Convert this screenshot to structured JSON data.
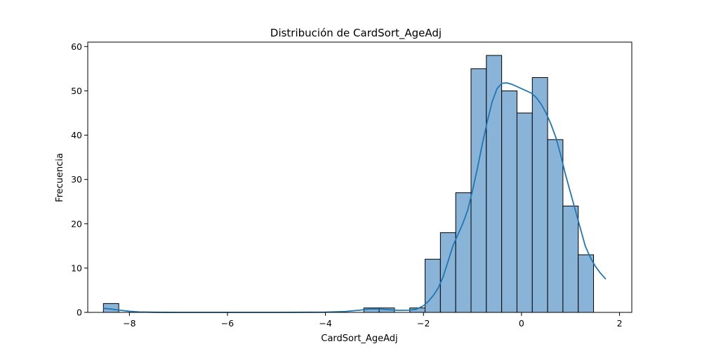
{
  "chart_data": {
    "type": "bar",
    "subtype": "histogram",
    "title": "Distribución de CardSort_AgeAdj",
    "xlabel": "CardSort_AgeAdj",
    "ylabel": "Frecuencia",
    "xlim": [
      -8.85,
      2.25
    ],
    "ylim": [
      0,
      61
    ],
    "x_ticks": [
      -8,
      -6,
      -4,
      -2,
      0,
      2
    ],
    "x_tick_labels": [
      "−8",
      "−6",
      "−4",
      "−2",
      "0",
      "2"
    ],
    "y_ticks": [
      0,
      10,
      20,
      30,
      40,
      50,
      60
    ],
    "y_tick_labels": [
      "0",
      "10",
      "20",
      "30",
      "40",
      "50",
      "60"
    ],
    "grid": false,
    "bins": {
      "start": -8.53,
      "width": 0.3125,
      "counts": [
        2,
        0,
        0,
        0,
        0,
        0,
        0,
        0,
        0,
        0,
        0,
        0,
        0,
        0,
        0,
        0,
        0,
        1,
        1,
        0,
        1,
        12,
        18,
        27,
        55,
        58,
        50,
        45,
        53,
        39,
        24,
        13
      ]
    },
    "kde": {
      "x": [
        -8.53,
        -8.4,
        -8.2,
        -8.0,
        -7.8,
        -7.5,
        -7.0,
        -6.0,
        -5.0,
        -4.0,
        -3.6,
        -3.3,
        -3.1,
        -2.9,
        -2.7,
        -2.5,
        -2.3,
        -2.15,
        -2.0,
        -1.9,
        -1.8,
        -1.7,
        -1.6,
        -1.5,
        -1.4,
        -1.3,
        -1.2,
        -1.1,
        -1.0,
        -0.9,
        -0.8,
        -0.7,
        -0.6,
        -0.5,
        -0.4,
        -0.3,
        -0.2,
        -0.1,
        0.0,
        0.1,
        0.2,
        0.3,
        0.4,
        0.5,
        0.6,
        0.7,
        0.8,
        0.9,
        1.0,
        1.1,
        1.2,
        1.3,
        1.4,
        1.5,
        1.6,
        1.72
      ],
      "y": [
        0.9,
        0.8,
        0.5,
        0.25,
        0.1,
        0.03,
        0.0,
        0.0,
        0.0,
        0.05,
        0.2,
        0.5,
        0.75,
        0.75,
        0.6,
        0.45,
        0.5,
        0.7,
        1.5,
        2.5,
        3.8,
        5.5,
        8.0,
        11.5,
        15.0,
        17.5,
        20.0,
        23.0,
        27.5,
        32.5,
        38.0,
        43.0,
        47.5,
        50.5,
        51.7,
        51.8,
        51.5,
        51.0,
        50.5,
        50.0,
        49.5,
        48.5,
        47.0,
        45.0,
        42.5,
        39.5,
        35.5,
        31.0,
        27.0,
        23.0,
        19.0,
        15.0,
        12.5,
        10.5,
        9.0,
        7.5
      ]
    },
    "colors": {
      "bar_fill": "#8ab4d7",
      "bar_edge": "#000000",
      "kde_line": "#1f77b4"
    }
  }
}
